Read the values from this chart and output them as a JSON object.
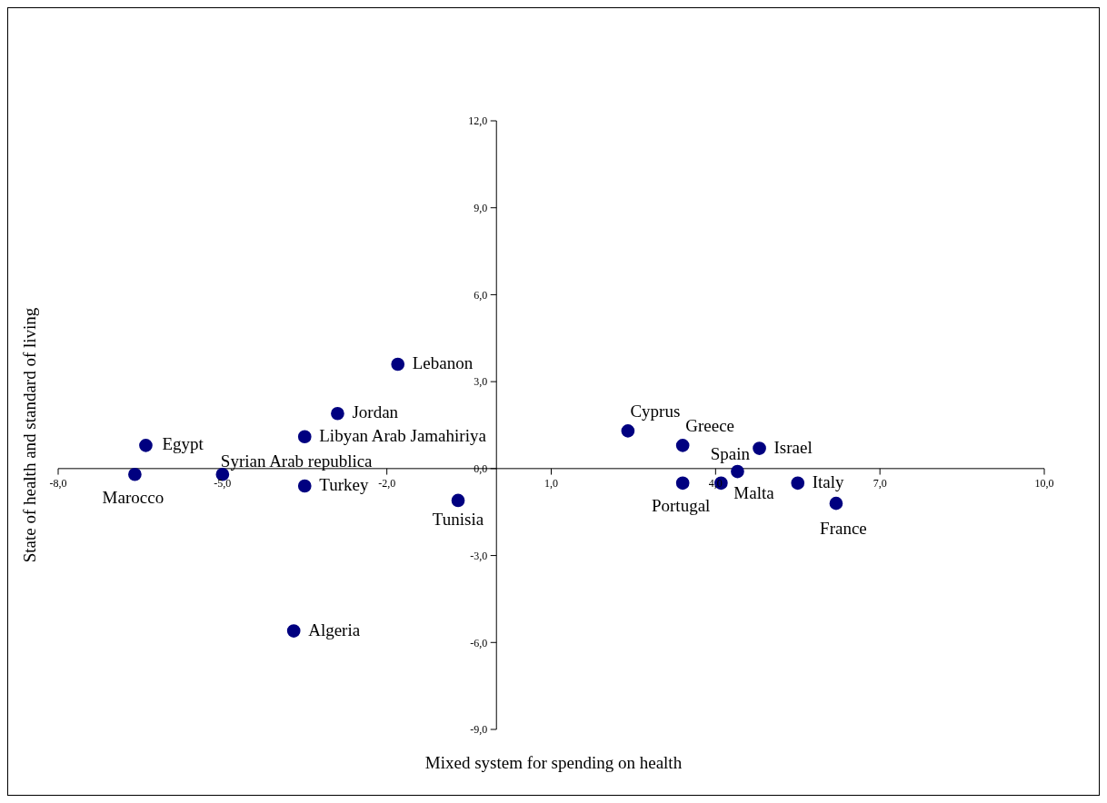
{
  "chart_data": {
    "type": "scatter",
    "xlabel": "Mixed system for spending on health",
    "ylabel": "State of health and standard of living",
    "marker": "circle",
    "xlim": [
      -8,
      10
    ],
    "ylim": [
      -9,
      12
    ],
    "xticks": [
      {
        "value": -8,
        "label": "-8,0"
      },
      {
        "value": -5,
        "label": "-5,0"
      },
      {
        "value": -2,
        "label": "-2,0"
      },
      {
        "value": 1,
        "label": "1,0"
      },
      {
        "value": 4,
        "label": "4,0"
      },
      {
        "value": 7,
        "label": "7,0"
      },
      {
        "value": 10,
        "label": "10,0"
      }
    ],
    "yticks": [
      {
        "value": -9,
        "label": "-9,0"
      },
      {
        "value": -6,
        "label": "-6,0"
      },
      {
        "value": -3,
        "label": "-3,0"
      },
      {
        "value": 0,
        "label": "0,0"
      },
      {
        "value": 3,
        "label": "3,0"
      },
      {
        "value": 6,
        "label": "6,0"
      },
      {
        "value": 9,
        "label": "9,0"
      },
      {
        "value": 12,
        "label": "12,0"
      }
    ],
    "series": [
      {
        "name": "Egypt",
        "color": "#000080",
        "x": [
          -6.4
        ],
        "values": [
          0.8
        ]
      },
      {
        "name": "Marocco",
        "color": "#000080",
        "x": [
          -6.6
        ],
        "values": [
          -0.2
        ]
      },
      {
        "name": "Syrian Arab republica",
        "color": "#000080",
        "x": [
          -5.0
        ],
        "values": [
          -0.2
        ]
      },
      {
        "name": "Turkey",
        "color": "#000080",
        "x": [
          -3.5
        ],
        "values": [
          -0.6
        ]
      },
      {
        "name": "Libyan Arab Jamahiriya",
        "color": "#000080",
        "x": [
          -3.5
        ],
        "values": [
          1.1
        ]
      },
      {
        "name": "Jordan",
        "color": "#000080",
        "x": [
          -2.9
        ],
        "values": [
          1.9
        ]
      },
      {
        "name": "Lebanon",
        "color": "#000080",
        "x": [
          -1.8
        ],
        "values": [
          3.6
        ]
      },
      {
        "name": "Tunisia",
        "color": "#000080",
        "x": [
          -0.7
        ],
        "values": [
          -1.1
        ]
      },
      {
        "name": "Algeria",
        "color": "#000080",
        "x": [
          -3.7
        ],
        "values": [
          -5.6
        ]
      },
      {
        "name": "Cyprus",
        "color": "#000080",
        "x": [
          2.4
        ],
        "values": [
          1.3
        ]
      },
      {
        "name": "Greece",
        "color": "#000080",
        "x": [
          3.4
        ],
        "values": [
          0.8
        ]
      },
      {
        "name": "Israel",
        "color": "#000080",
        "x": [
          4.8
        ],
        "values": [
          0.7
        ]
      },
      {
        "name": "Spain",
        "color": "#000080",
        "x": [
          4.4
        ],
        "values": [
          -0.1
        ]
      },
      {
        "name": "Portugal",
        "color": "#000080",
        "x": [
          3.4
        ],
        "values": [
          -0.5
        ]
      },
      {
        "name": "Malta",
        "color": "#000080",
        "x": [
          4.1
        ],
        "values": [
          -0.5
        ]
      },
      {
        "name": "Italy",
        "color": "#000080",
        "x": [
          5.5
        ],
        "values": [
          -0.5
        ]
      },
      {
        "name": "France",
        "color": "#000080",
        "x": [
          6.2
        ],
        "values": [
          -1.2
        ]
      }
    ]
  }
}
